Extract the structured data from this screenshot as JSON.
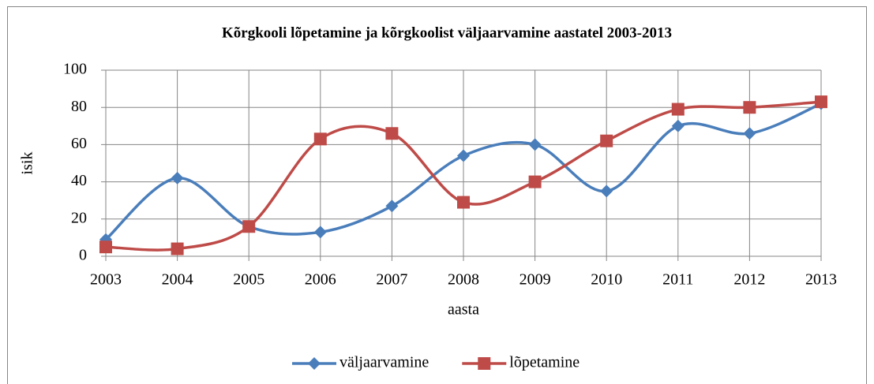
{
  "chart_data": {
    "type": "line",
    "title": "Kõrgkooli lõpetamine ja kõrgkoolist väljaarvamine aastatel 2003-2013",
    "x_label": "aasta",
    "y_label": "isik",
    "categories": [
      "2003",
      "2004",
      "2005",
      "2006",
      "2007",
      "2008",
      "2009",
      "2010",
      "2011",
      "2012",
      "2013"
    ],
    "series": [
      {
        "name": "väljaarvamine",
        "color": "#4a7ebb",
        "marker": "diamond",
        "values": [
          9,
          42,
          16,
          13,
          27,
          54,
          60,
          35,
          70,
          66,
          82
        ]
      },
      {
        "name": "lõpetamine",
        "color": "#be4b48",
        "marker": "square",
        "values": [
          5,
          4,
          16,
          63,
          66,
          29,
          40,
          62,
          79,
          80,
          83
        ]
      }
    ],
    "ylim": [
      0,
      100
    ],
    "yticks": [
      0,
      20,
      40,
      60,
      80,
      100
    ],
    "grid": true,
    "smooth": true,
    "legend": "bottom"
  }
}
